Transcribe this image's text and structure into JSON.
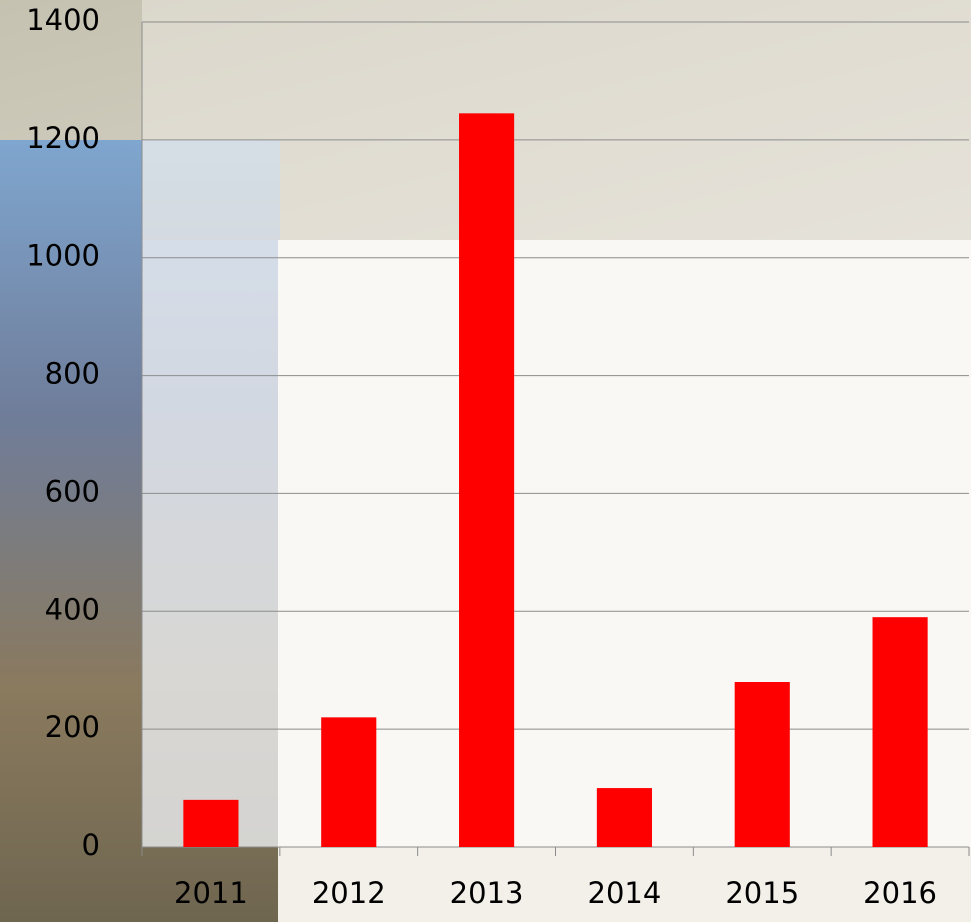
{
  "chart_data": {
    "type": "bar",
    "categories": [
      "2011",
      "2012",
      "2013",
      "2014",
      "2015",
      "2016"
    ],
    "values": [
      80,
      220,
      1245,
      100,
      280,
      390
    ],
    "color": "#ff0000",
    "ylim": [
      0,
      1400
    ],
    "yticks": [
      0,
      200,
      400,
      600,
      800,
      1000,
      1200,
      1400
    ],
    "grid": true
  }
}
